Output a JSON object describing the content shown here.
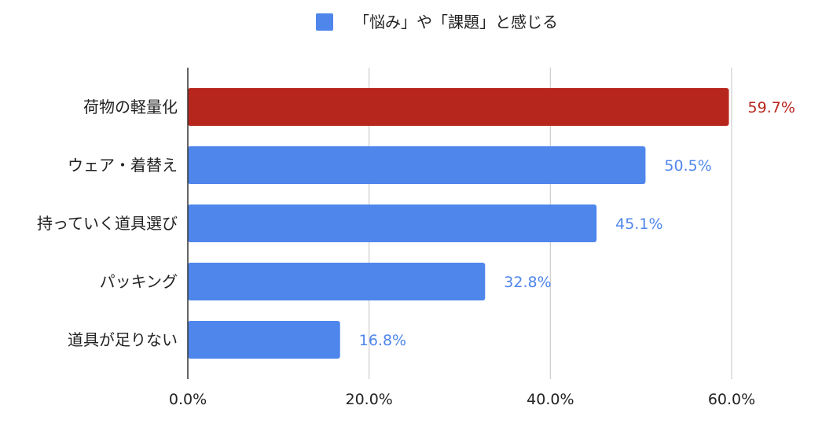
{
  "chart_data": {
    "type": "bar",
    "orientation": "horizontal",
    "title": "",
    "xlabel": "",
    "ylabel": "",
    "categories": [
      "荷物の軽量化",
      "ウェア・着替え",
      "持っていく道具選び",
      "パッキング",
      "道具が足りない"
    ],
    "series": [
      {
        "name": "「悩み」や「課題」と感じる",
        "values": [
          59.7,
          50.5,
          45.1,
          32.8,
          16.8
        ],
        "value_labels": [
          "59.7%",
          "50.5%",
          "45.1%",
          "32.8%",
          "16.8%"
        ],
        "color": "#4f86ec",
        "highlight_index": 0,
        "highlight_color": "#b7261d"
      }
    ],
    "xlim": [
      0,
      60
    ],
    "xticks": [
      0,
      20,
      40,
      60
    ],
    "xtick_labels": [
      "0.0%",
      "20.0%",
      "40.0%",
      "60.0%"
    ],
    "grid": true,
    "legend_position": "top"
  }
}
